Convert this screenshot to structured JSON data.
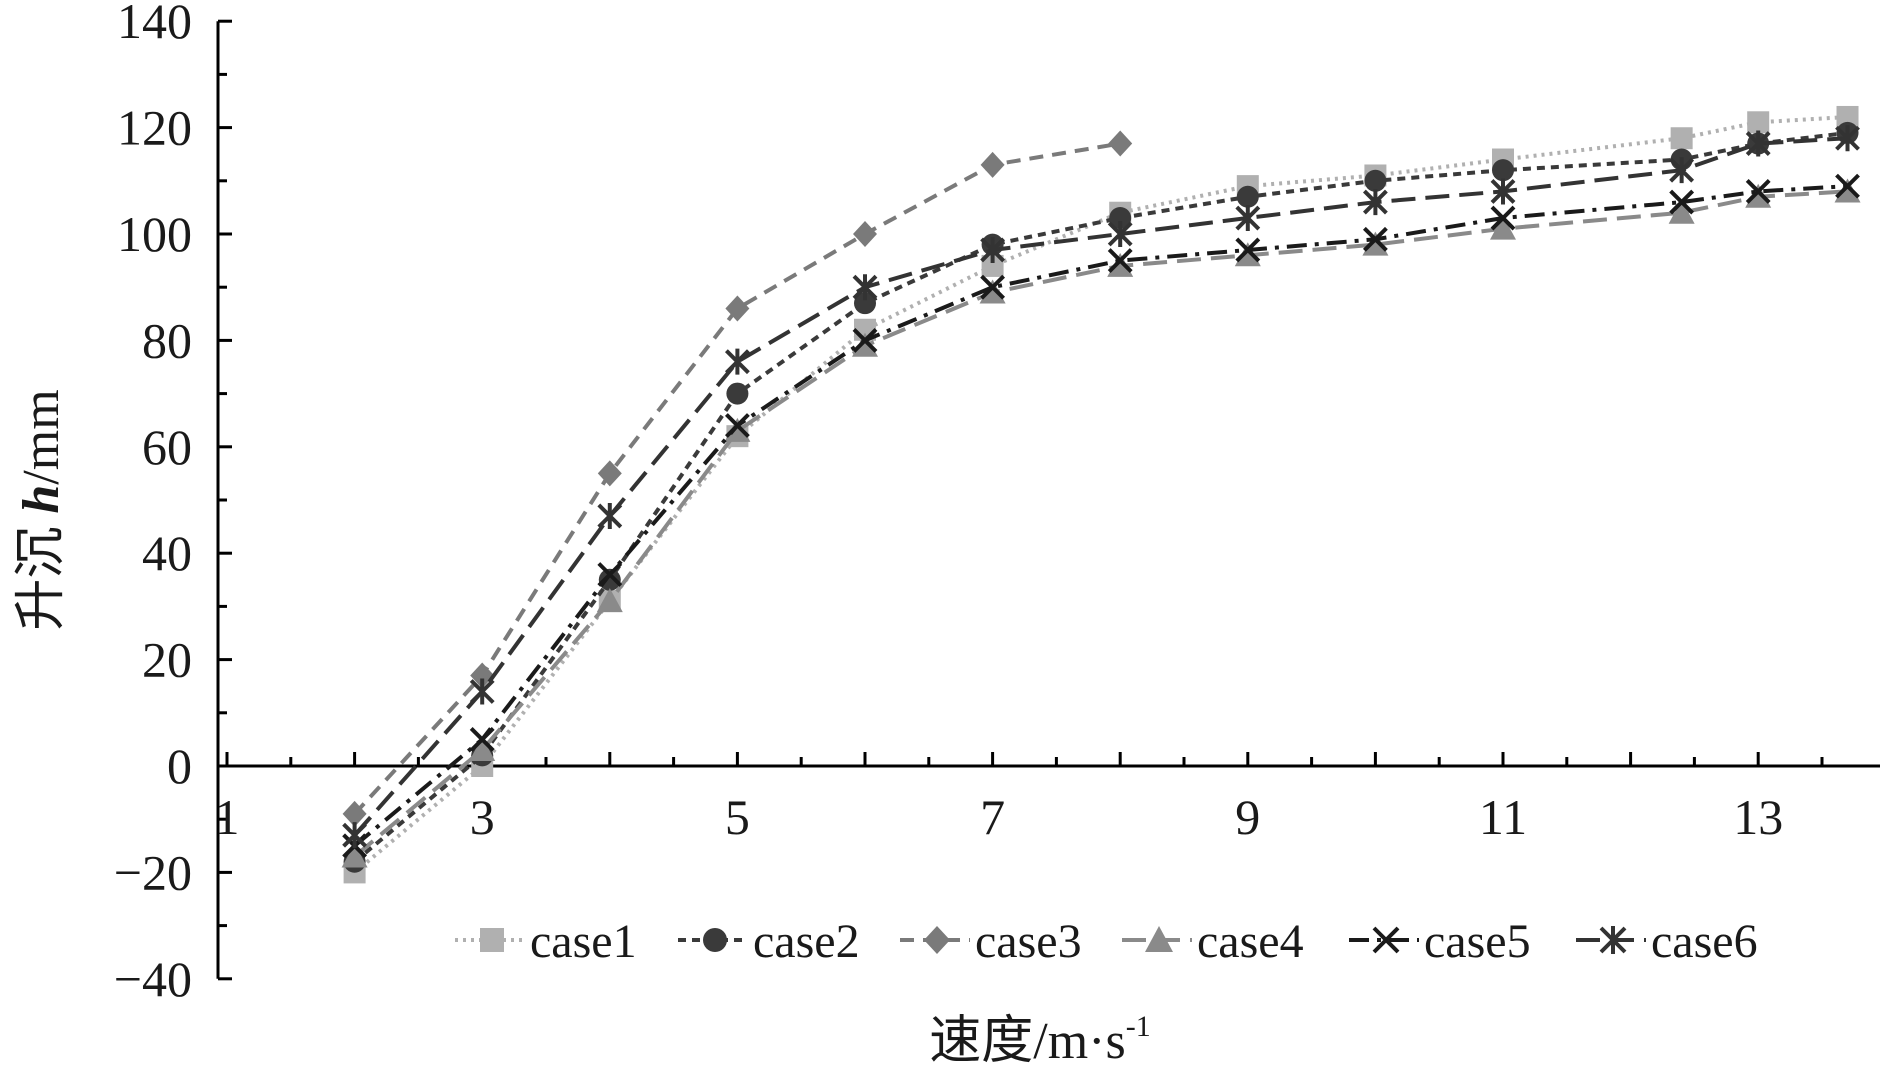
{
  "chart_data": {
    "type": "line",
    "xlabel": "速度/m·s",
    "xlabel_sup": "-1",
    "ylabel_prefix": "升沉 ",
    "ylabel_var": "h",
    "ylabel_suffix": "/mm",
    "xlim": [
      1,
      14
    ],
    "ylim": [
      -40,
      140
    ],
    "x_ticks": [
      1,
      3,
      5,
      7,
      9,
      11,
      13
    ],
    "y_ticks": [
      -40,
      -20,
      0,
      20,
      40,
      60,
      80,
      100,
      120,
      140
    ],
    "grid": false,
    "legend_position": "bottom-right",
    "series": [
      {
        "name": "case1",
        "marker": "square",
        "dash": "dotted",
        "color": "#b0b0b0",
        "x": [
          2,
          3,
          4,
          5,
          6,
          7,
          8,
          9,
          10,
          11,
          12.4,
          13,
          13.7
        ],
        "y": [
          -20,
          0,
          31,
          62,
          82,
          94,
          104,
          109,
          111,
          114,
          118,
          121,
          122
        ]
      },
      {
        "name": "case2",
        "marker": "circle",
        "dash": "short-dash",
        "color": "#3a3a3a",
        "x": [
          2,
          3,
          4,
          5,
          6,
          7,
          8,
          9,
          10,
          11,
          12.4,
          13,
          13.7
        ],
        "y": [
          -18,
          2,
          35,
          70,
          87,
          98,
          103,
          107,
          110,
          112,
          114,
          117,
          119
        ]
      },
      {
        "name": "case3",
        "marker": "diamond",
        "dash": "dash",
        "color": "#7a7a7a",
        "x": [
          2,
          3,
          4,
          5,
          6,
          7,
          8
        ],
        "y": [
          -9,
          17,
          55,
          86,
          100,
          113,
          117
        ]
      },
      {
        "name": "case4",
        "marker": "triangle",
        "dash": "long-dash",
        "color": "#8a8a8a",
        "x": [
          2,
          3,
          4,
          5,
          6,
          7,
          8,
          9,
          10,
          11,
          12.4,
          13,
          13.7
        ],
        "y": [
          -17,
          3,
          31,
          63,
          79,
          89,
          94,
          96,
          98,
          101,
          104,
          107,
          108
        ]
      },
      {
        "name": "case5",
        "marker": "x",
        "dash": "dash-dot",
        "color": "#1a1a1a",
        "x": [
          2,
          3,
          4,
          5,
          6,
          7,
          8,
          9,
          10,
          11,
          12.4,
          13,
          13.7
        ],
        "y": [
          -15,
          5,
          36,
          64,
          80,
          90,
          95,
          97,
          99,
          103,
          106,
          108,
          109
        ]
      },
      {
        "name": "case6",
        "marker": "asterisk",
        "dash": "long-dash",
        "color": "#333333",
        "x": [
          2,
          3,
          4,
          5,
          6,
          7,
          8,
          9,
          10,
          11,
          12.4,
          13,
          13.7
        ],
        "y": [
          -13,
          14,
          47,
          76,
          90,
          97,
          100,
          103,
          106,
          108,
          112,
          117,
          118
        ]
      }
    ]
  }
}
